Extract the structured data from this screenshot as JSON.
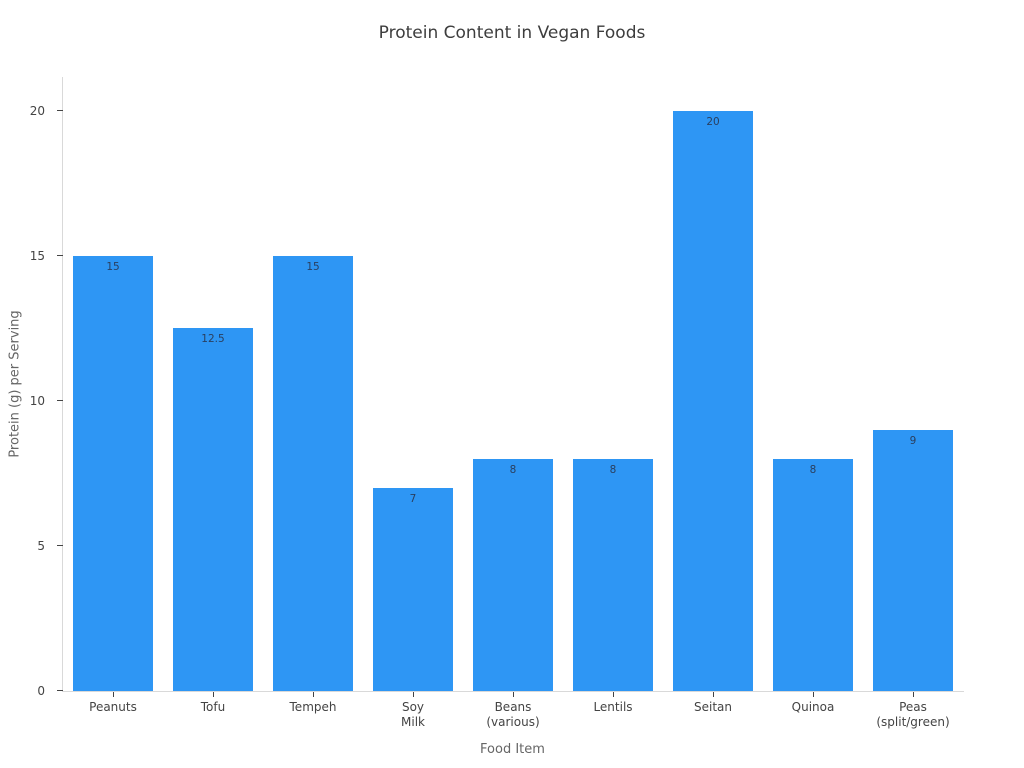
{
  "chart_data": {
    "type": "bar",
    "title": "Protein Content in Vegan Foods",
    "xlabel": "Food Item",
    "ylabel": "Protein (g) per Serving",
    "categories": [
      "Peanuts",
      "Tofu",
      "Tempeh",
      "Soy\nMilk",
      "Beans\n(various)",
      "Lentils",
      "Seitan",
      "Quinoa",
      "Peas\n(split/green)"
    ],
    "values": [
      15,
      12.5,
      15,
      7,
      8,
      8,
      20,
      8,
      9
    ],
    "bar_labels": [
      "15",
      "12.5",
      "15",
      "7",
      "8",
      "8",
      "20",
      "8",
      "9"
    ],
    "yticks": [
      0,
      5,
      10,
      15,
      20
    ],
    "ylim": [
      0,
      21.2
    ],
    "grid": false,
    "legend": false,
    "colors": {
      "bar": "#2E96F4",
      "bar_label": "#2a3f5f",
      "tick_label": "#444444",
      "axis_title": "#666666",
      "title": "#3d3d3d",
      "axis_line": "#d9d9d9",
      "background": "#ffffff"
    }
  }
}
